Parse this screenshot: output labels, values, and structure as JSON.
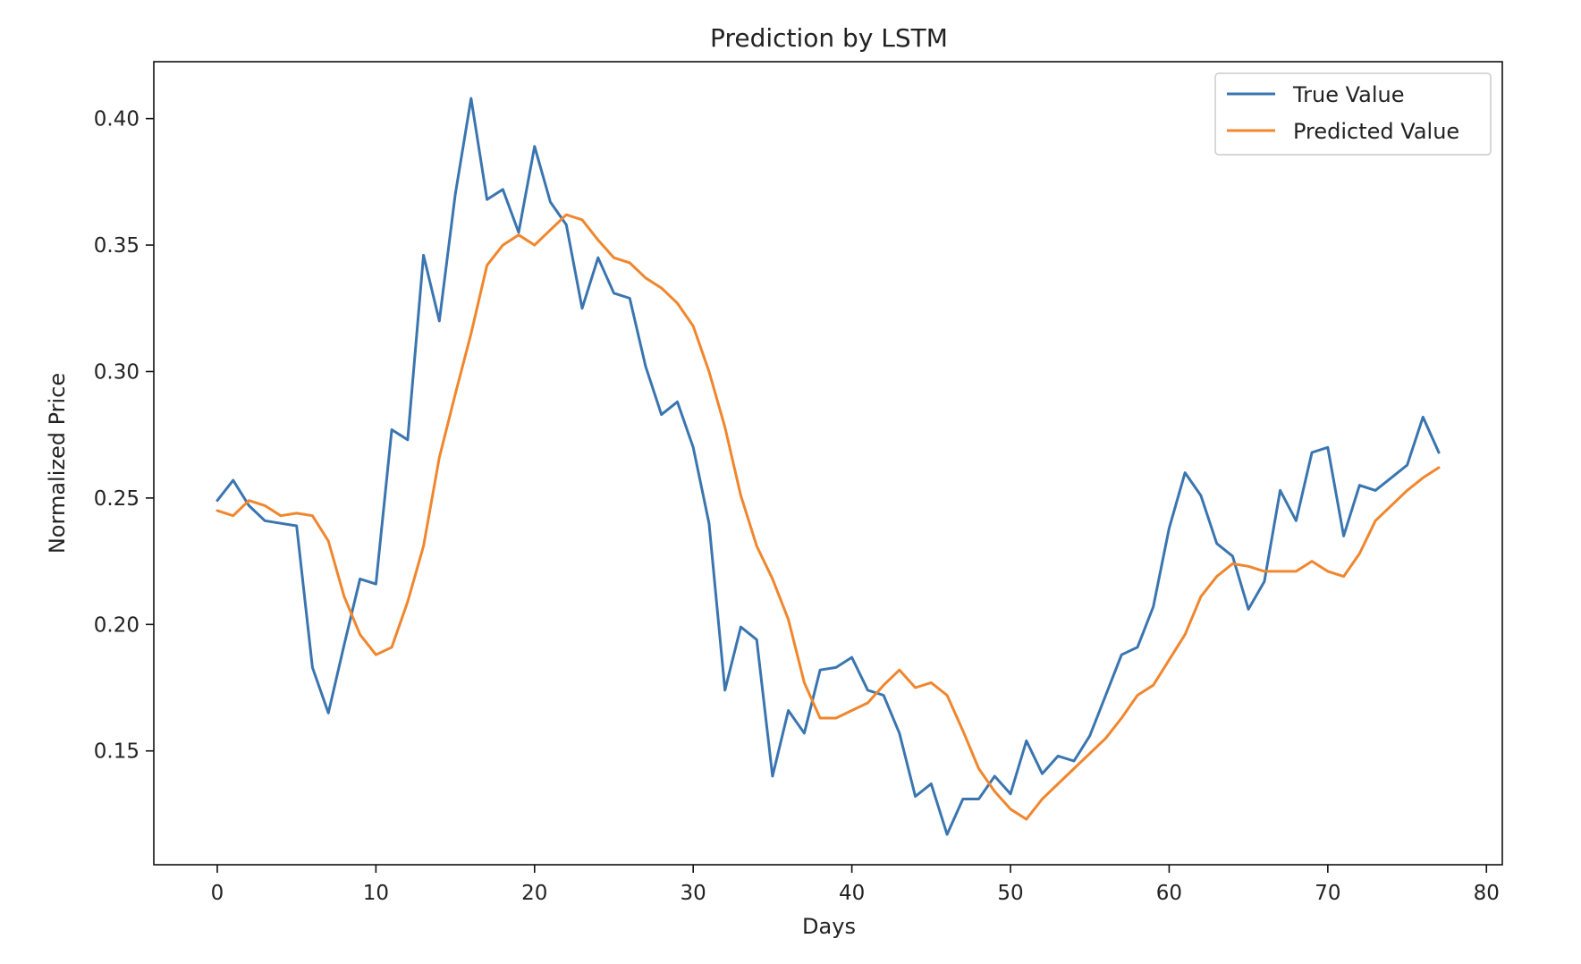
{
  "chart_data": {
    "type": "line",
    "title": "Prediction by LSTM",
    "xlabel": "Days",
    "ylabel": "Normalized Price",
    "xlim": [
      -4,
      81
    ],
    "ylim": [
      0.105,
      0.4225
    ],
    "xticks": [
      0,
      10,
      20,
      30,
      40,
      50,
      60,
      70,
      80
    ],
    "xtick_labels": [
      "0",
      "10",
      "20",
      "30",
      "40",
      "50",
      "60",
      "70",
      "80"
    ],
    "yticks": [
      0.15,
      0.2,
      0.25,
      0.3,
      0.35,
      0.4
    ],
    "ytick_labels": [
      "0.15",
      "0.20",
      "0.25",
      "0.30",
      "0.35",
      "0.40"
    ],
    "grid": false,
    "legend_position": "top-right",
    "x": [
      0,
      1,
      2,
      3,
      4,
      5,
      6,
      7,
      8,
      9,
      10,
      11,
      12,
      13,
      14,
      15,
      16,
      17,
      18,
      19,
      20,
      21,
      22,
      23,
      24,
      25,
      26,
      27,
      28,
      29,
      30,
      31,
      32,
      33,
      34,
      35,
      36,
      37,
      38,
      39,
      40,
      41,
      42,
      43,
      44,
      45,
      46,
      47,
      48,
      49,
      50,
      51,
      52,
      53,
      54,
      55,
      56,
      57,
      58,
      59,
      60,
      61,
      62,
      63,
      64,
      65,
      66,
      67,
      68,
      69,
      70,
      71,
      72,
      73,
      74,
      75,
      76,
      77
    ],
    "series": [
      {
        "name": "True Value",
        "color": "#3a75b0",
        "values": [
          0.249,
          0.257,
          0.247,
          0.241,
          0.24,
          0.239,
          0.183,
          0.165,
          0.192,
          0.218,
          0.216,
          0.277,
          0.273,
          0.346,
          0.32,
          0.37,
          0.408,
          0.368,
          0.372,
          0.355,
          0.389,
          0.367,
          0.358,
          0.325,
          0.345,
          0.331,
          0.329,
          0.302,
          0.283,
          0.288,
          0.27,
          0.24,
          0.174,
          0.199,
          0.194,
          0.14,
          0.166,
          0.157,
          0.182,
          0.183,
          0.187,
          0.174,
          0.172,
          0.157,
          0.132,
          0.137,
          0.117,
          0.131,
          0.131,
          0.14,
          0.133,
          0.154,
          0.141,
          0.148,
          0.146,
          0.156,
          0.172,
          0.188,
          0.191,
          0.207,
          0.238,
          0.26,
          0.251,
          0.232,
          0.227,
          0.206,
          0.217,
          0.253,
          0.241,
          0.268,
          0.27,
          0.235,
          0.255,
          0.253,
          0.258,
          0.263,
          0.282,
          0.268
        ]
      },
      {
        "name": "Predicted Value",
        "color": "#f0862d",
        "values": [
          0.245,
          0.243,
          0.249,
          0.247,
          0.243,
          0.244,
          0.243,
          0.233,
          0.211,
          0.196,
          0.188,
          0.191,
          0.209,
          0.231,
          0.266,
          0.291,
          0.315,
          0.342,
          0.35,
          0.354,
          0.35,
          0.356,
          0.362,
          0.36,
          0.352,
          0.345,
          0.343,
          0.337,
          0.333,
          0.327,
          0.318,
          0.3,
          0.278,
          0.251,
          0.231,
          0.218,
          0.202,
          0.177,
          0.163,
          0.163,
          0.166,
          0.169,
          0.176,
          0.182,
          0.175,
          0.177,
          0.172,
          0.158,
          0.143,
          0.134,
          0.127,
          0.123,
          0.131,
          0.137,
          0.143,
          0.149,
          0.155,
          0.163,
          0.172,
          0.176,
          0.186,
          0.196,
          0.211,
          0.219,
          0.224,
          0.223,
          0.221,
          0.221,
          0.221,
          0.225,
          0.221,
          0.219,
          0.228,
          0.241,
          0.247,
          0.253,
          0.258,
          0.262
        ]
      }
    ]
  }
}
